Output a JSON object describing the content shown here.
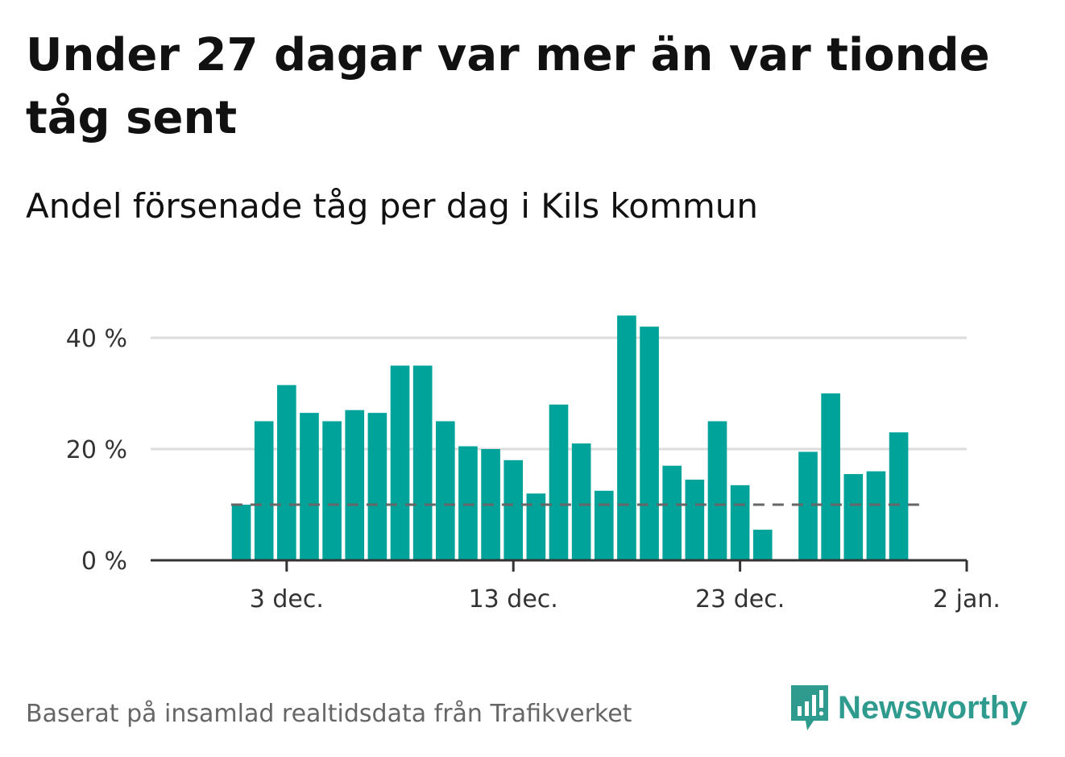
{
  "chart_data": {
    "type": "bar",
    "title": "Under 27 dagar var mer än var tionde tåg sent",
    "subtitle": "Andel försenade tåg per dag i Kils kommun",
    "x_start": "2019-12-01",
    "x": [
      "2019-12-01",
      "2019-12-02",
      "2019-12-03",
      "2019-12-04",
      "2019-12-05",
      "2019-12-06",
      "2019-12-07",
      "2019-12-08",
      "2019-12-09",
      "2019-12-10",
      "2019-12-11",
      "2019-12-12",
      "2019-12-13",
      "2019-12-14",
      "2019-12-15",
      "2019-12-16",
      "2019-12-17",
      "2019-12-18",
      "2019-12-19",
      "2019-12-20",
      "2019-12-21",
      "2019-12-22",
      "2019-12-23",
      "2019-12-24",
      "2019-12-25",
      "2019-12-26",
      "2019-12-27",
      "2019-12-28",
      "2019-12-29",
      "2019-12-30"
    ],
    "values": [
      10,
      25,
      31.5,
      26.5,
      25,
      27,
      26.5,
      35,
      35,
      25,
      20.5,
      20,
      18,
      12,
      28,
      21,
      12.5,
      44,
      42,
      17,
      14.5,
      25,
      13.5,
      5.5,
      null,
      19.5,
      30,
      15.5,
      16,
      23
    ],
    "ylim": [
      0,
      50
    ],
    "y_ticks": [
      0,
      20,
      40
    ],
    "y_tick_labels": [
      "0 %",
      "20 %",
      "40 %"
    ],
    "x_ticks": [
      "2019-12-03",
      "2019-12-13",
      "2019-12-23",
      "2020-01-02"
    ],
    "x_tick_labels": [
      "3 dec.",
      "13 dec.",
      "23 dec.",
      "2 jan."
    ],
    "x_range": [
      "2019-11-27",
      "2020-01-02"
    ],
    "reference_line": 10,
    "grid": true,
    "bar_color": "#00a39a",
    "reference_color": "#666666"
  },
  "footer": {
    "source": "Baserat på insamlad realtidsdata från Trafikverket",
    "brand": "Newsworthy",
    "brand_color": "#2f9a8e"
  }
}
